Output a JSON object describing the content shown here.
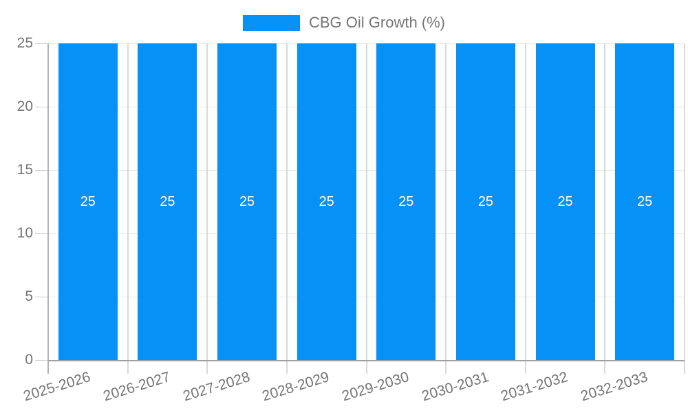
{
  "legend": {
    "position": "top"
  },
  "chart_data": {
    "type": "bar",
    "title": "",
    "categories": [
      "2025-2026",
      "2026-2027",
      "2027-2028",
      "2028-2029",
      "2029-2030",
      "2030-2031",
      "2031-2032",
      "2032-2033"
    ],
    "series": [
      {
        "name": "CBG Oil Growth (%)",
        "values": [
          25,
          25,
          25,
          25,
          25,
          25,
          25,
          25
        ]
      }
    ],
    "bar_value_labels": [
      "25",
      "25",
      "25",
      "25",
      "25",
      "25",
      "25",
      "25"
    ],
    "ytick_labels": [
      "0",
      "5",
      "10",
      "15",
      "20",
      "25"
    ],
    "yticks": [
      0,
      5,
      10,
      15,
      20,
      25
    ],
    "ylim": [
      0,
      25
    ],
    "xlabel": "",
    "ylabel": "",
    "grid": true,
    "legend_position": "top",
    "colors": {
      "bar": "#0591f5",
      "bar_label": "#ffffff",
      "axis_text": "#757575",
      "hgrid": "#e6e6e6",
      "vgrid": "#d9d9d9",
      "ytick": "#cccccc",
      "yaxis_line": "#b3b3b3",
      "baseline": "#a0a0a0"
    }
  }
}
